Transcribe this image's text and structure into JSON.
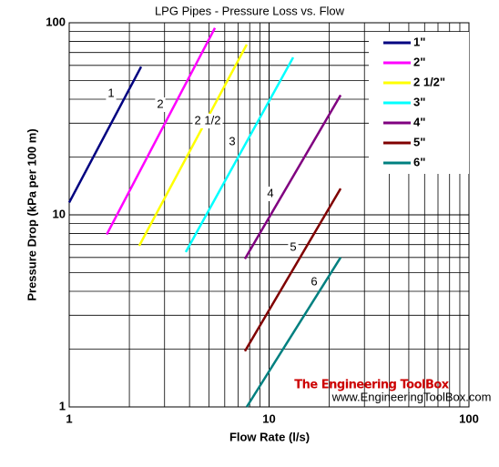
{
  "chart_data": {
    "type": "line",
    "title": "LPG Pipes - Pressure Loss vs. Flow",
    "x_label": "Flow Rate (l/s)",
    "y_label": "Pressure Drop (kPa per 100 m)",
    "x_scale": "log",
    "y_scale": "log",
    "grid": true,
    "legend": "upper right",
    "xlim": [
      1,
      100
    ],
    "ylim": [
      1,
      100
    ],
    "xticks": [
      1,
      10,
      100
    ],
    "yticks": [
      1,
      10,
      100
    ],
    "series": [
      {
        "name": "1\"",
        "label": "1",
        "color": "#000080",
        "x": [
          1,
          2.29
        ],
        "values": [
          11.6,
          59
        ]
      },
      {
        "name": "2\"",
        "label": "2",
        "color": "#ff00ff",
        "x": [
          1.54,
          5.36
        ],
        "values": [
          7.9,
          94
        ]
      },
      {
        "name": "2 1/2\"",
        "label": "2 1/2",
        "color": "#ffff00",
        "x": [
          2.24,
          7.73
        ],
        "values": [
          6.9,
          77
        ]
      },
      {
        "name": "3\"",
        "label": "3",
        "color": "#00ffff",
        "x": [
          3.83,
          13.2
        ],
        "values": [
          6.4,
          66
        ]
      },
      {
        "name": "4\"",
        "label": "4",
        "color": "#800080",
        "x": [
          7.57,
          22.8
        ],
        "values": [
          5.9,
          42
        ]
      },
      {
        "name": "5\"",
        "label": "5",
        "color": "#800000",
        "x": [
          7.57,
          22.8
        ],
        "values": [
          1.95,
          13.7
        ]
      },
      {
        "name": "6\"",
        "label": "6",
        "color": "#008080",
        "x": [
          7.73,
          22.8
        ],
        "values": [
          1,
          6
        ]
      }
    ],
    "watermark": {
      "title": "The Engineering ToolBox",
      "url": "www.EngineeringToolBox.com"
    }
  }
}
